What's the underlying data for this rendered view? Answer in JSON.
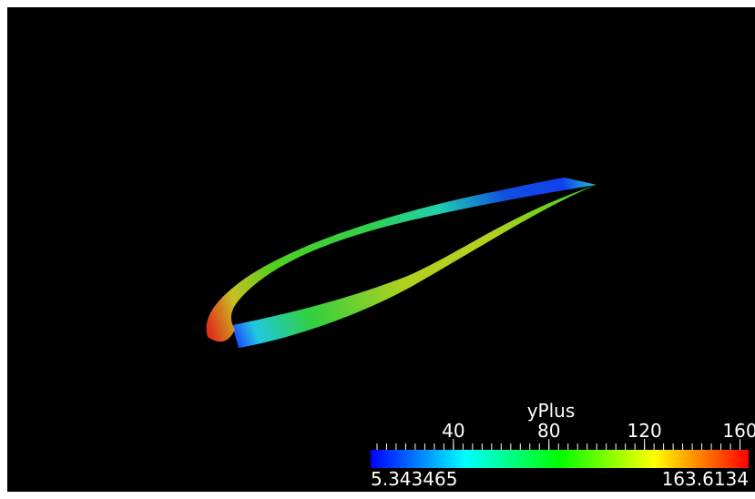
{
  "colorbar": {
    "title": "yPlus",
    "range": [
      5.343465,
      163.6134
    ],
    "ticks": [
      40,
      80,
      120,
      160
    ]
  }
}
